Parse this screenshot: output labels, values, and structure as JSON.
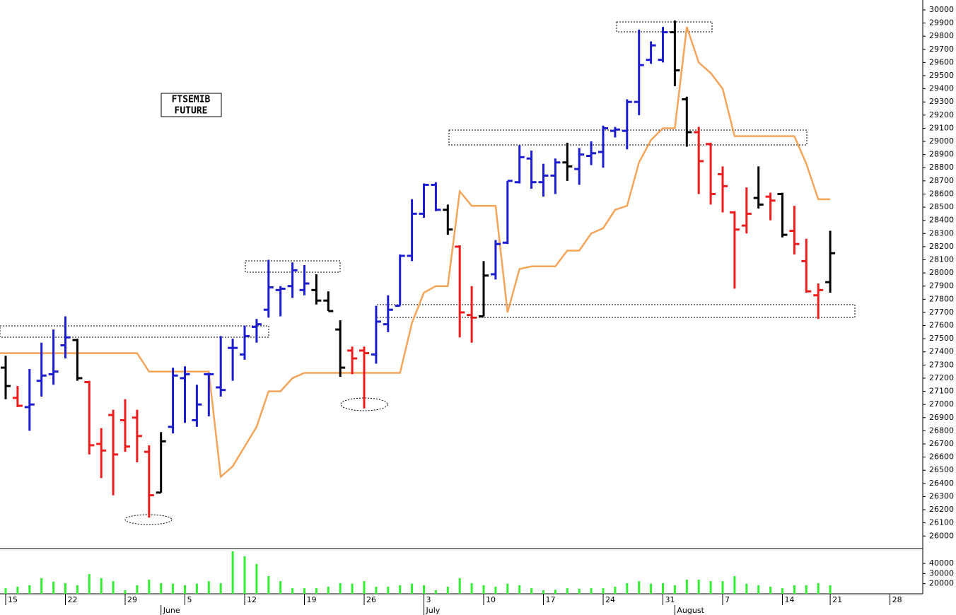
{
  "chart_data": [
    {
      "type": "ohlc",
      "title": [
        "FTSEMIB",
        "FUTURE"
      ],
      "categories": [
        "15",
        null,
        null,
        null,
        null,
        "22",
        null,
        null,
        null,
        null,
        "29",
        null,
        null,
        null,
        null,
        "5",
        null,
        null,
        null,
        null,
        "12",
        null,
        null,
        null,
        null,
        "19",
        null,
        null,
        null,
        null,
        "26",
        null,
        null,
        null,
        null,
        "3",
        null,
        null,
        null,
        null,
        "10",
        null,
        null,
        null,
        null,
        "17",
        null,
        null,
        null,
        null,
        "24",
        null,
        null,
        null,
        null,
        "31",
        null,
        null,
        null,
        null,
        "7",
        null,
        null,
        null,
        null,
        "14",
        null,
        null,
        null,
        "21",
        null,
        null,
        null,
        null,
        "28",
        null,
        null
      ],
      "month_labels": [
        null,
        null,
        null,
        null,
        null,
        null,
        null,
        null,
        null,
        null,
        null,
        null,
        null,
        "June",
        null,
        null,
        null,
        null,
        null,
        null,
        null,
        null,
        null,
        null,
        null,
        null,
        null,
        null,
        null,
        null,
        null,
        null,
        null,
        null,
        null,
        "July",
        null,
        null,
        null,
        null,
        null,
        null,
        null,
        null,
        null,
        null,
        null,
        null,
        null,
        null,
        null,
        null,
        null,
        null,
        null,
        null,
        "August",
        null,
        null,
        null,
        null,
        null,
        null,
        null,
        null,
        null,
        null,
        null,
        null,
        null,
        null,
        null,
        null,
        null,
        null,
        null,
        null
      ],
      "open": [
        27280,
        27050,
        26980,
        27180,
        27230,
        27450,
        27490,
        27170,
        26700,
        26920,
        26880,
        26900,
        26640,
        26330,
        26830,
        27200,
        26880,
        27230,
        27130,
        27430,
        27380,
        27590,
        27720,
        27870,
        27900,
        27870,
        27870,
        27790,
        27570,
        27410,
        27410,
        27380,
        27610,
        27750,
        28130,
        28450,
        28670,
        28480,
        28200,
        27680,
        27670,
        27990,
        28230,
        28690,
        28870,
        28690,
        28740,
        28840,
        28790,
        28890,
        28920,
        29080,
        29080,
        29300,
        29620,
        29620,
        29830,
        29320,
        29070,
        28980,
        28750,
        28460,
        28360,
        28570,
        28580,
        28600,
        28320,
        28090,
        27830,
        27930,
        null,
        null,
        null,
        null,
        null,
        null,
        null
      ],
      "high": [
        27370,
        27140,
        27270,
        27470,
        27570,
        27670,
        27500,
        27180,
        26820,
        26960,
        27040,
        26960,
        26690,
        26790,
        27280,
        27290,
        27150,
        27240,
        27520,
        27500,
        27600,
        27650,
        28100,
        27900,
        28080,
        28060,
        27990,
        27860,
        27640,
        27440,
        27440,
        27750,
        27830,
        28140,
        28560,
        28680,
        28690,
        28520,
        28210,
        27900,
        28090,
        28250,
        28700,
        28970,
        28930,
        28830,
        28870,
        28990,
        28950,
        29000,
        29120,
        29110,
        29320,
        29850,
        29760,
        29870,
        29920,
        29340,
        29110,
        28990,
        28810,
        28470,
        28650,
        28810,
        28610,
        28610,
        28510,
        28260,
        27920,
        28320,
        null,
        null,
        null,
        null,
        null,
        null,
        null
      ],
      "low": [
        27040,
        26980,
        26800,
        27060,
        27150,
        27350,
        27180,
        26620,
        26440,
        26310,
        26640,
        26560,
        26140,
        26330,
        26780,
        26860,
        26830,
        26910,
        27060,
        27180,
        27340,
        27470,
        27660,
        27670,
        27810,
        27830,
        27760,
        27710,
        27210,
        27230,
        26970,
        27310,
        27550,
        27750,
        28090,
        28420,
        28470,
        28290,
        27510,
        27470,
        27670,
        27950,
        28220,
        28680,
        28640,
        28580,
        28600,
        28700,
        28670,
        28820,
        28800,
        29030,
        28940,
        29200,
        29590,
        29600,
        29420,
        28960,
        28600,
        28520,
        28460,
        27880,
        28300,
        28490,
        28400,
        28270,
        28140,
        27850,
        27650,
        27850,
        null,
        null,
        null,
        null,
        null,
        null,
        null
      ],
      "close": [
        27140,
        26990,
        27000,
        27220,
        27250,
        27510,
        27200,
        26690,
        26650,
        26620,
        26680,
        26760,
        26310,
        26720,
        27220,
        27230,
        27000,
        27230,
        27110,
        27430,
        27520,
        27610,
        27890,
        27880,
        28020,
        27920,
        27790,
        27710,
        27280,
        27350,
        27390,
        27630,
        27720,
        28130,
        28450,
        28670,
        28480,
        28330,
        27700,
        27660,
        27980,
        28220,
        28700,
        28880,
        28690,
        28740,
        28840,
        28810,
        28900,
        28910,
        29100,
        29090,
        29300,
        29580,
        29730,
        29830,
        29540,
        29070,
        28850,
        28600,
        28660,
        28330,
        28450,
        28520,
        28550,
        28290,
        28220,
        27860,
        27870,
        28150,
        null,
        null,
        null,
        null,
        null,
        null,
        null
      ],
      "bar_colors": [
        "#000000",
        "#ee1c1c",
        "#1c1cd0",
        "#1c1cd0",
        "#1c1cd0",
        "#1c1cd0",
        "#000000",
        "#ee1c1c",
        "#ee1c1c",
        "#ee1c1c",
        "#ee1c1c",
        "#ee1c1c",
        "#ee1c1c",
        "#000000",
        "#1c1cd0",
        "#1c1cd0",
        "#1c1cd0",
        "#1c1cd0",
        "#1c1cd0",
        "#1c1cd0",
        "#1c1cd0",
        "#1c1cd0",
        "#1c1cd0",
        "#1c1cd0",
        "#1c1cd0",
        "#1c1cd0",
        "#000000",
        "#000000",
        "#000000",
        "#ee1c1c",
        "#ee1c1c",
        "#1c1cd0",
        "#1c1cd0",
        "#1c1cd0",
        "#1c1cd0",
        "#1c1cd0",
        "#1c1cd0",
        "#000000",
        "#ee1c1c",
        "#ee1c1c",
        "#000000",
        "#1c1cd0",
        "#1c1cd0",
        "#1c1cd0",
        "#1c1cd0",
        "#1c1cd0",
        "#1c1cd0",
        "#000000",
        "#1c1cd0",
        "#1c1cd0",
        "#1c1cd0",
        "#1c1cd0",
        "#1c1cd0",
        "#1c1cd0",
        "#1c1cd0",
        "#1c1cd0",
        "#000000",
        "#000000",
        "#ee1c1c",
        "#ee1c1c",
        "#ee1c1c",
        "#ee1c1c",
        "#ee1c1c",
        "#000000",
        "#ee1c1c",
        "#000000",
        "#ee1c1c",
        "#ee1c1c",
        "#ee1c1c",
        "#000000",
        null,
        null,
        null,
        null,
        null,
        null,
        null
      ],
      "line": {
        "color": "#f5a55a",
        "values": [
          27390,
          27390,
          27390,
          27390,
          27390,
          27390,
          27390,
          27390,
          27390,
          27390,
          27390,
          27390,
          27250,
          27250,
          27250,
          27250,
          27250,
          27250,
          26450,
          26530,
          26680,
          26830,
          27100,
          27100,
          27200,
          27240,
          27240,
          27240,
          27240,
          27240,
          27240,
          27240,
          27240,
          27240,
          27620,
          27850,
          27900,
          27900,
          28620,
          28510,
          28510,
          28510,
          27700,
          28030,
          28050,
          28050,
          28050,
          28170,
          28170,
          28300,
          28340,
          28480,
          28510,
          28840,
          29010,
          29100,
          29100,
          29870,
          29600,
          29520,
          29400,
          29040,
          29040,
          29040,
          29040,
          29040,
          29040,
          28830,
          28560,
          28560,
          null,
          null,
          null,
          null,
          null,
          null,
          null
        ]
      },
      "ylim": [
        25910,
        30075
      ],
      "yticks": [
        26000,
        26100,
        26200,
        26300,
        26400,
        26500,
        26600,
        26700,
        26800,
        26900,
        27000,
        27100,
        27200,
        27300,
        27400,
        27500,
        27600,
        27700,
        27800,
        27900,
        28000,
        28100,
        28200,
        28300,
        28400,
        28500,
        28600,
        28700,
        28800,
        28900,
        29000,
        29100,
        29200,
        29300,
        29400,
        29500,
        29600,
        29700,
        29800,
        29900,
        30000
      ]
    },
    {
      "type": "bar",
      "color": "#33ee33",
      "values": [
        15500,
        17000,
        18500,
        25500,
        22000,
        20500,
        18500,
        29500,
        25500,
        22500,
        13500,
        18500,
        24000,
        20500,
        20000,
        18500,
        20000,
        22500,
        20500,
        52000,
        47000,
        39500,
        27500,
        22500,
        15500,
        15500,
        15500,
        17000,
        20500,
        20000,
        22500,
        17000,
        17000,
        18500,
        20000,
        18500,
        13500,
        17000,
        25500,
        20500,
        18500,
        17000,
        20000,
        18500,
        15500,
        13500,
        14000,
        15500,
        15000,
        15500,
        15500,
        17000,
        20500,
        22500,
        20000,
        20500,
        18500,
        24000,
        24000,
        22500,
        22500,
        27500,
        20000,
        18500,
        17000,
        15500,
        18500,
        18500,
        20500,
        18500,
        null,
        null,
        null,
        null,
        null,
        null,
        null
      ],
      "ylim": [
        10000,
        54000
      ],
      "yticks": [
        20000,
        30000,
        40000
      ]
    }
  ]
}
